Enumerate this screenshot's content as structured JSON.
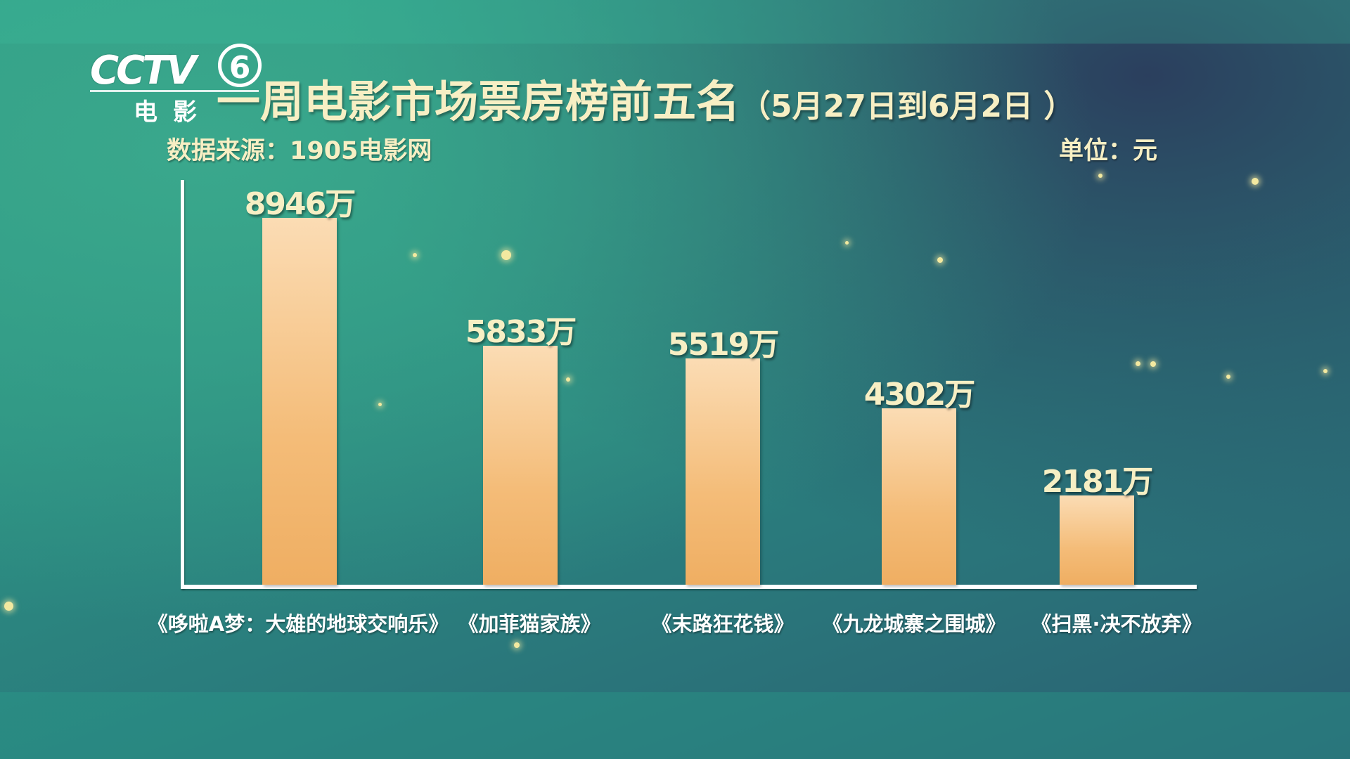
{
  "header": {
    "logo_text": "CCTV",
    "logo_channel": "6",
    "logo_subtitle": "电影",
    "title_main": "一周电影市场票房榜前五名",
    "title_date": "（5月27日到6月2日 ）",
    "source": "数据来源：1905电影网",
    "unit": "单位：元"
  },
  "chart_data": {
    "type": "bar",
    "title": "一周电影市场票房榜前五名（5月27日到6月2日 ）",
    "unit": "元",
    "categories": [
      "《哆啦A梦：大雄的地球交响乐》",
      "《加菲猫家族》",
      "《末路狂花钱》",
      "《九龙城寨之围城》",
      "《扫黑·决不放弃》"
    ],
    "values": [
      8946,
      5833,
      5519,
      4302,
      2181
    ],
    "value_labels": [
      "8946万",
      "5833万",
      "5519万",
      "4302万",
      "2181万"
    ],
    "ylim": [
      0,
      10000
    ],
    "grid": false,
    "bar_color": "#f2b86e",
    "label_color": "#f7efc4"
  }
}
